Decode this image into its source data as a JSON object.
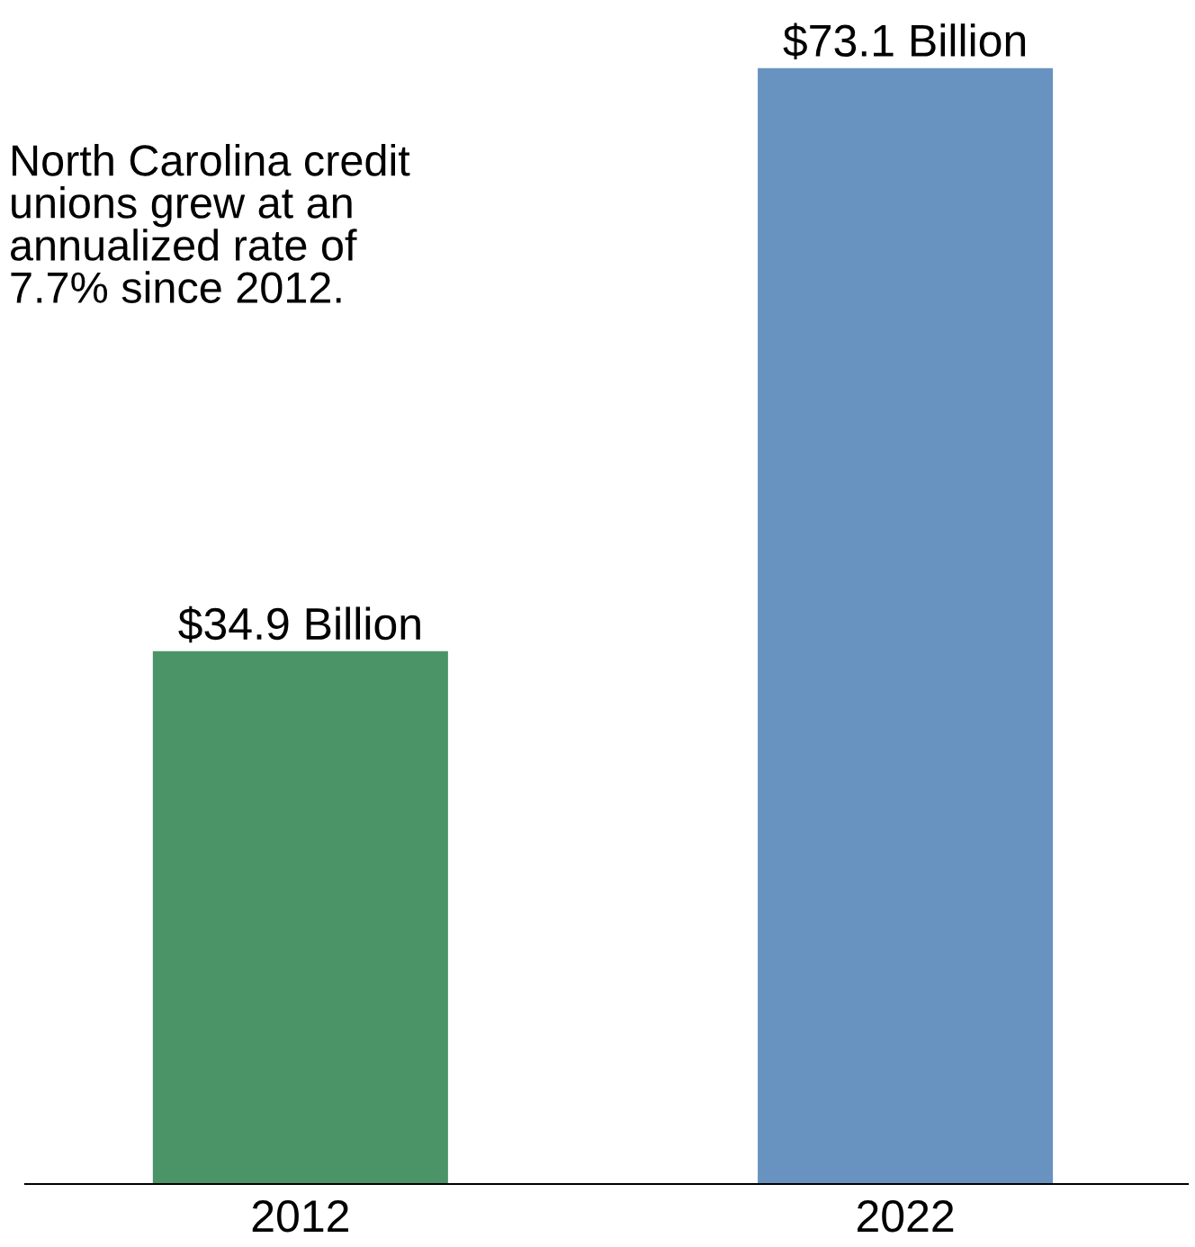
{
  "chart_data": {
    "type": "bar",
    "categories": [
      "2012",
      "2022"
    ],
    "values": [
      34.9,
      73.1
    ],
    "colors": [
      "#4a9468",
      "#6892bf"
    ],
    "value_labels": [
      "$34.9 Billion",
      "$73.1 Billion"
    ],
    "annotations": [
      "North Carolina credit\nunions grew at an\nannualized rate of\n7.7% since 2012."
    ],
    "grid": false,
    "legend": false
  }
}
